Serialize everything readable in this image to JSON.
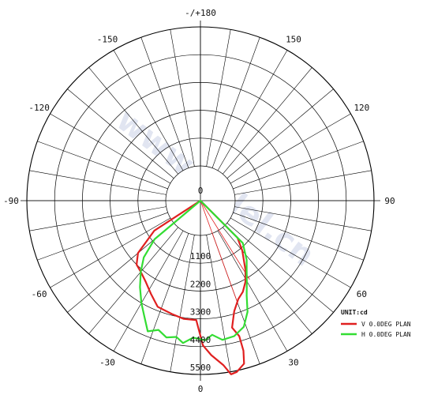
{
  "chart_data": {
    "type": "polar",
    "unit_label": "UNIT:cd",
    "watermark": "www.anlel.cn",
    "center_label": "0",
    "rmax": 5500,
    "ring_values": [
      1100,
      2200,
      3300,
      4400,
      5500
    ],
    "ring_labels": [
      "1100",
      "2200",
      "3300",
      "4400",
      "5500"
    ],
    "angle_ticks": [
      {
        "deg": 0,
        "label": "0"
      },
      {
        "deg": 30,
        "label": "30"
      },
      {
        "deg": 60,
        "label": "60"
      },
      {
        "deg": 90,
        "label": "90"
      },
      {
        "deg": 120,
        "label": "120"
      },
      {
        "deg": 150,
        "label": "150"
      },
      {
        "deg": 180,
        "label": "-/+180"
      },
      {
        "deg": -150,
        "label": "-150"
      },
      {
        "deg": -120,
        "label": "-120"
      },
      {
        "deg": -90,
        "label": "-90"
      },
      {
        "deg": -60,
        "label": "-60"
      },
      {
        "deg": -30,
        "label": "-30"
      }
    ],
    "series": [
      {
        "name": "V 0.0DEG PLAN",
        "color": "#e02020",
        "points": [
          {
            "angle": -61,
            "value": 0
          },
          {
            "angle": -57,
            "value": 800
          },
          {
            "angle": -50,
            "value": 1850
          },
          {
            "angle": -45,
            "value": 2200
          },
          {
            "angle": -40,
            "value": 2300
          },
          {
            "angle": -34,
            "value": 2500
          },
          {
            "angle": -28,
            "value": 2800
          },
          {
            "angle": -22,
            "value": 3150
          },
          {
            "angle": -14,
            "value": 3250
          },
          {
            "angle": -8,
            "value": 3350
          },
          {
            "angle": -2,
            "value": 3350
          },
          {
            "angle": 1,
            "value": 4350
          },
          {
            "angle": 4,
            "value": 4750
          },
          {
            "angle": 8,
            "value": 5200
          },
          {
            "angle": 10,
            "value": 5600
          },
          {
            "angle": 12,
            "value": 5550
          },
          {
            "angle": 15,
            "value": 5300
          },
          {
            "angle": 16,
            "value": 4800
          },
          {
            "angle": 16,
            "value": 4200
          },
          {
            "angle": 14,
            "value": 3800
          },
          {
            "angle": 17,
            "value": 3200
          },
          {
            "angle": 21,
            "value": 2800
          },
          {
            "angle": 25,
            "value": 2600
          },
          {
            "angle": 29,
            "value": 2300
          },
          {
            "angle": 33,
            "value": 1900
          },
          {
            "angle": 40,
            "value": 1200
          },
          {
            "angle": 45,
            "value": 700
          },
          {
            "angle": 50,
            "value": 0
          }
        ]
      },
      {
        "name": "H 0.0DEG PLAN",
        "color": "#33dd33",
        "points": [
          {
            "angle": -58,
            "value": 0
          },
          {
            "angle": -50,
            "value": 1000
          },
          {
            "angle": -45,
            "value": 1800
          },
          {
            "angle": -40,
            "value": 2300
          },
          {
            "angle": -35,
            "value": 2800
          },
          {
            "angle": -30,
            "value": 3300
          },
          {
            "angle": -26,
            "value": 3700
          },
          {
            "angle": -22,
            "value": 4200
          },
          {
            "angle": -18,
            "value": 4000
          },
          {
            "angle": -14,
            "value": 4200
          },
          {
            "angle": -10,
            "value": 4100
          },
          {
            "angle": -7,
            "value": 4300
          },
          {
            "angle": -3,
            "value": 4050
          },
          {
            "angle": 2,
            "value": 4150
          },
          {
            "angle": 5,
            "value": 3950
          },
          {
            "angle": 9,
            "value": 4200
          },
          {
            "angle": 14,
            "value": 4150
          },
          {
            "angle": 19,
            "value": 3900
          },
          {
            "angle": 23,
            "value": 3400
          },
          {
            "angle": 26,
            "value": 2800
          },
          {
            "angle": 30,
            "value": 2300
          },
          {
            "angle": 34,
            "value": 1900
          },
          {
            "angle": 38,
            "value": 1600
          },
          {
            "angle": 45,
            "value": 1000
          },
          {
            "angle": 52,
            "value": 0
          }
        ]
      }
    ],
    "reference_rays": [
      {
        "deg": 20,
        "value": 2950
      },
      {
        "deg": 32,
        "value": 2300
      }
    ],
    "legend_position": "bottom-right",
    "grid": true
  }
}
